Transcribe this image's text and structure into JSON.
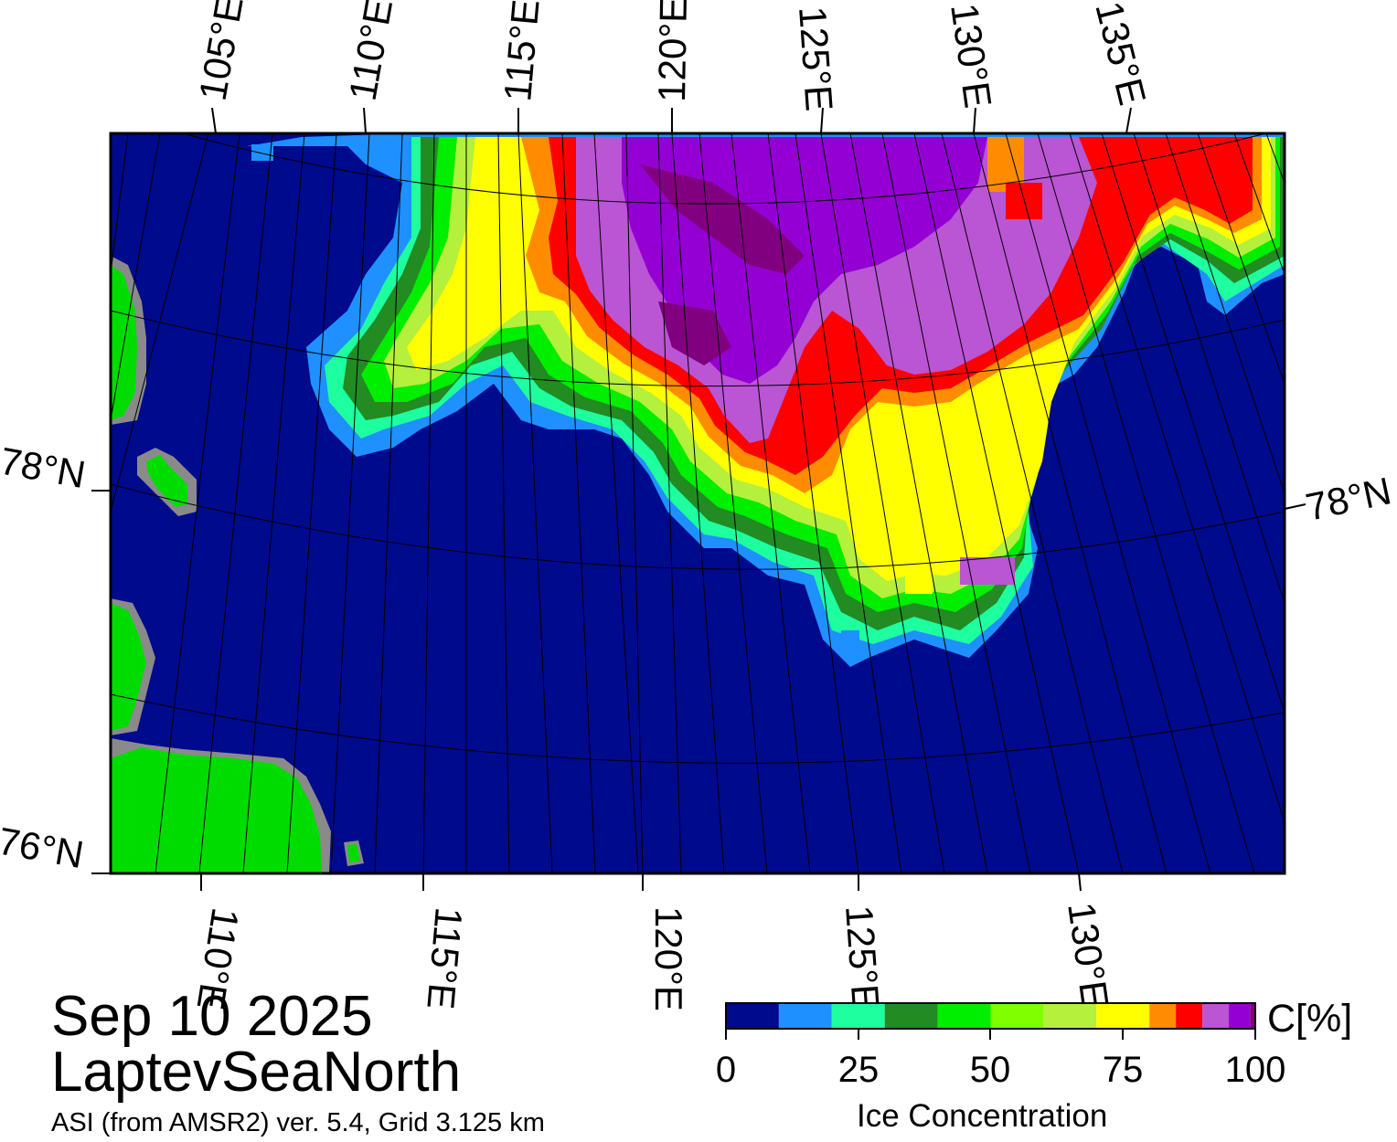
{
  "map": {
    "lon_labels_top": [
      "105°E",
      "110°E",
      "115°E",
      "120°E",
      "125°E",
      "130°E",
      "135°E"
    ],
    "lon_labels_bottom": [
      "110°E",
      "115°E",
      "120°E",
      "125°E",
      "130°E"
    ],
    "lat_labels": [
      "78°N",
      "78°N",
      "76°N"
    ],
    "colors": {
      "ocean": "#000a8c",
      "land": "#00dc00",
      "land_mask": "#8a8a8a",
      "graticule": "#000000"
    }
  },
  "title": {
    "date": "Sep 10 2025",
    "region": "LaptevSeaNorth",
    "source": "ASI (from AMSR2) ver. 5.4,  Grid 3.125 km"
  },
  "colorbar": {
    "unit": "C[%]",
    "title": "Ice Concentration",
    "ticks": [
      "0",
      "25",
      "50",
      "75",
      "100"
    ],
    "range": [
      0,
      100
    ],
    "bins": [
      {
        "from": 0,
        "to": 10,
        "color": "#000a8c"
      },
      {
        "from": 10,
        "to": 20,
        "color": "#1e90ff"
      },
      {
        "from": 20,
        "to": 30,
        "color": "#1effa0"
      },
      {
        "from": 30,
        "to": 40,
        "color": "#228b22"
      },
      {
        "from": 40,
        "to": 50,
        "color": "#00ee00"
      },
      {
        "from": 50,
        "to": 60,
        "color": "#7fff00"
      },
      {
        "from": 60,
        "to": 70,
        "color": "#b4f03c"
      },
      {
        "from": 70,
        "to": 80,
        "color": "#ffff00"
      },
      {
        "from": 80,
        "to": 85,
        "color": "#ff8c00"
      },
      {
        "from": 85,
        "to": 90,
        "color": "#ff0000"
      },
      {
        "from": 90,
        "to": 95,
        "color": "#ba55d3"
      },
      {
        "from": 95,
        "to": 99,
        "color": "#9400d3"
      },
      {
        "from": 99,
        "to": 100,
        "color": "#800080"
      }
    ]
  }
}
